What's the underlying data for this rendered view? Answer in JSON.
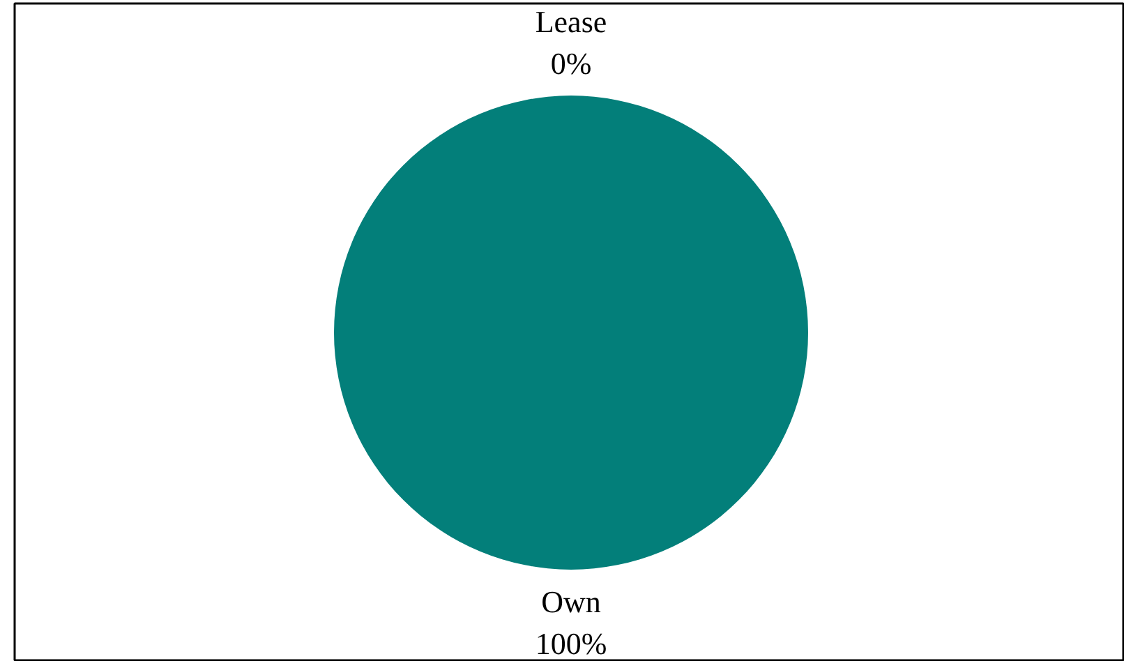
{
  "chart_data": {
    "type": "pie",
    "categories": [
      "Lease",
      "Own"
    ],
    "values": [
      0,
      100
    ],
    "colors": [
      "#4aa6a2",
      "#037f7a"
    ],
    "value_labels": [
      "0%",
      "100%"
    ]
  }
}
